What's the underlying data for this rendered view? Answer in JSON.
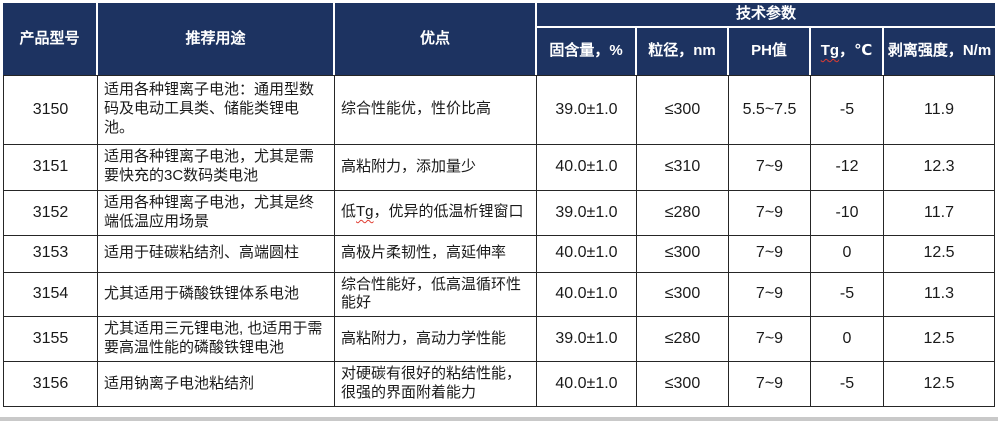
{
  "table": {
    "header": {
      "product": "产品型号",
      "usage": "推荐用途",
      "advantage": "优点",
      "tech_params": "技术参数",
      "sub": {
        "solid_content": "固含量，%",
        "particle_size": "粒径，nm",
        "ph": "PH值",
        "tg": "Tg",
        "tg_unit": "，℃",
        "peel_strength": "剥离强度，N/m"
      }
    },
    "rows": [
      {
        "model": "3150",
        "usage": "适用各种锂离子电池：通用型数码及电动工具类、储能类锂电池。",
        "advantage": "综合性能优，性价比高",
        "solid": "39.0±1.0",
        "particle": "≤300",
        "ph": "5.5~7.5",
        "tg": "-5",
        "peel": "11.9"
      },
      {
        "model": "3151",
        "usage": "适用各种锂离子电池，尤其是需要快充的3C数码类电池",
        "advantage": "高粘附力，添加量少",
        "solid": "40.0±1.0",
        "particle": "≤310",
        "ph": "7~9",
        "tg": "-12",
        "peel": "12.3"
      },
      {
        "model": "3152",
        "usage": "适用各种锂离子电池，尤其是终端低温应用场景",
        "advantage_pre": "低",
        "advantage_tg": "Tg",
        "advantage_post": "，优异的低温析锂窗口",
        "solid": "39.0±1.0",
        "particle": "≤280",
        "ph": "7~9",
        "tg": "-10",
        "peel": "11.7"
      },
      {
        "model": "3153",
        "usage": "适用于硅碳粘结剂、高端圆柱",
        "advantage": "高极片柔韧性，高延伸率",
        "solid": "40.0±1.0",
        "particle": "≤300",
        "ph": "7~9",
        "tg": "0",
        "peel": "12.5"
      },
      {
        "model": "3154",
        "usage": "尤其适用于磷酸铁锂体系电池",
        "advantage": "综合性能好，低高温循环性能好",
        "solid": "40.0±1.0",
        "particle": "≤300",
        "ph": "7~9",
        "tg": "-5",
        "peel": "11.3"
      },
      {
        "model": "3155",
        "usage": "尤其适用三元锂电池, 也适用于需要高温性能的磷酸铁锂电池",
        "advantage": "高粘附力，高动力学性能",
        "solid": "39.0±1.0",
        "particle": "≤280",
        "ph": "7~9",
        "tg": "0",
        "peel": "12.5"
      },
      {
        "model": "3156",
        "usage": "适用钠离子电池粘结剂",
        "advantage": "对硬碳有很好的粘结性能，很强的界面附着能力",
        "solid": "40.0±1.0",
        "particle": "≤300",
        "ph": "7~9",
        "tg": "-5",
        "peel": "12.5"
      }
    ]
  },
  "colors": {
    "header_bg": "#1d3361",
    "header_text": "#ffffff",
    "body_text": "#1a1a1a",
    "grid_line": "#262626",
    "spellcheck_underline": "#e03c31"
  }
}
